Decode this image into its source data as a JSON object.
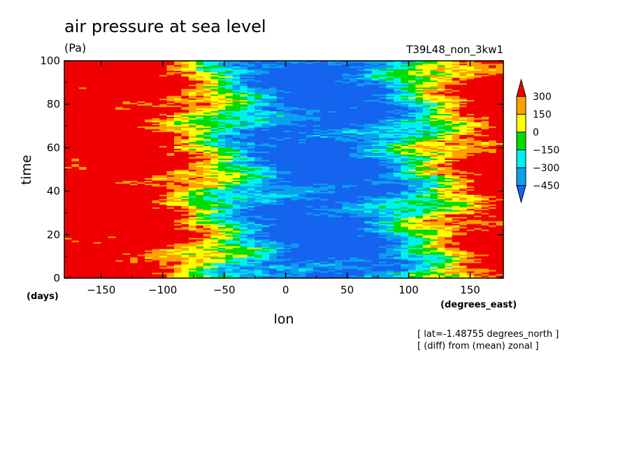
{
  "title": "air pressure at sea level",
  "units": "(Pa)",
  "experiment": "T39L48_non_3kw1",
  "notes": [
    "[ lat=-1.48755 degrees_north ]",
    "[ (diff) from (mean) zonal ]"
  ],
  "chart_data": {
    "type": "heatmap",
    "title": "air pressure at sea level",
    "xlabel": "lon",
    "xunits": "(degrees_east)",
    "ylabel": "time",
    "yunits": "(days)",
    "xlim": [
      -180,
      177
    ],
    "ylim": [
      0,
      100
    ],
    "xticks": [
      -150,
      -100,
      -50,
      0,
      50,
      100,
      150
    ],
    "yticks": [
      0,
      20,
      40,
      60,
      80,
      100
    ],
    "contour_levels": [
      -450,
      -300,
      -150,
      0,
      150,
      300
    ],
    "colorbar_labels": [
      "300",
      "150",
      "0",
      "−150",
      "−300",
      "−450"
    ],
    "colors": [
      "#1464f0",
      "#0aa0f0",
      "#00f0f0",
      "#00dc00",
      "#ffff00",
      "#ffa000",
      "#f00000"
    ],
    "extend": "both",
    "grid": false,
    "pattern": {
      "description_units": "Pa",
      "low_center_lon": 30,
      "high_center_lon": -150
    }
  }
}
